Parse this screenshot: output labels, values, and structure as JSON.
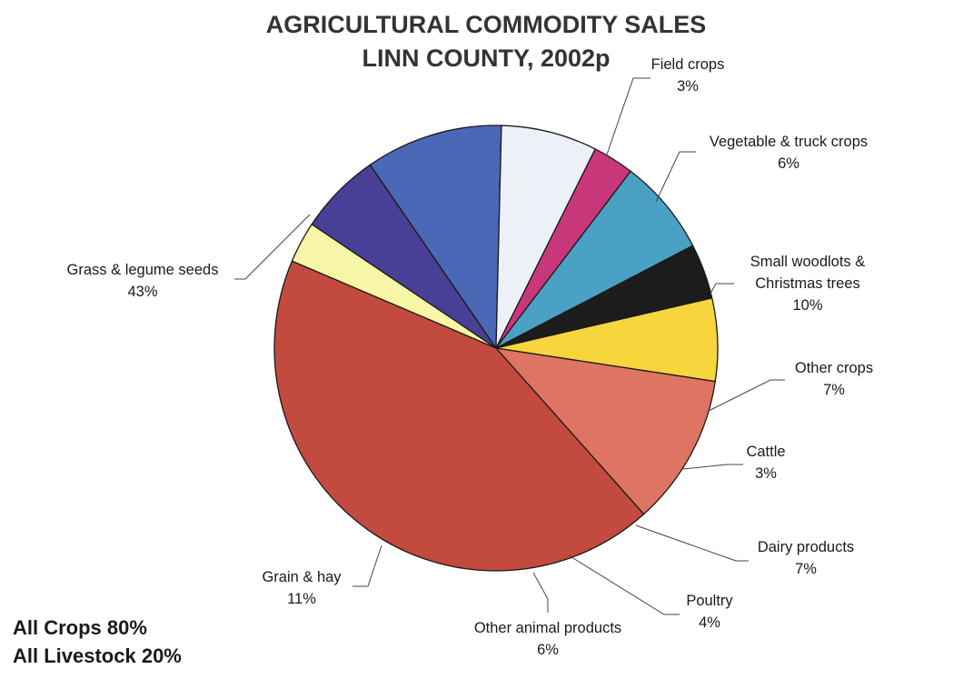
{
  "chart_data": {
    "type": "pie",
    "title": "AGRICULTURAL COMMODITY SALES",
    "subtitle": "LINN COUNTY, 2002p",
    "slices": [
      {
        "label": "Field crops",
        "value": 3,
        "value_label": "3%",
        "color": "#f7f5a6"
      },
      {
        "label": "Vegetable & truck crops",
        "value": 6,
        "value_label": "6%",
        "color": "#4a3f96"
      },
      {
        "label": "Small woodlots &",
        "label2": "Christmas trees",
        "value": 10,
        "value_label": "10%",
        "color": "#4a68b5"
      },
      {
        "label": "Other crops",
        "value": 7,
        "value_label": "7%",
        "color": "#eef0f7"
      },
      {
        "label": "Cattle",
        "value": 3,
        "value_label": "3%",
        "color": "#c8377a"
      },
      {
        "label": "Dairy products",
        "value": 7,
        "value_label": "7%",
        "color": "#4aa1c4"
      },
      {
        "label": "Poultry",
        "value": 4,
        "value_label": "4%",
        "color": "#1c1c1c"
      },
      {
        "label": "Other animal products",
        "value": 6,
        "value_label": "6%",
        "color": "#f7d53c"
      },
      {
        "label": "Grain & hay",
        "value": 11,
        "value_label": "11%",
        "color": "#de7462"
      },
      {
        "label": "Grass & legume seeds",
        "value": 43,
        "value_label": "43%",
        "color": "#c24a3e"
      }
    ]
  },
  "summary": {
    "crops": "All Crops 80%",
    "livestock": "All Livestock 20%"
  }
}
